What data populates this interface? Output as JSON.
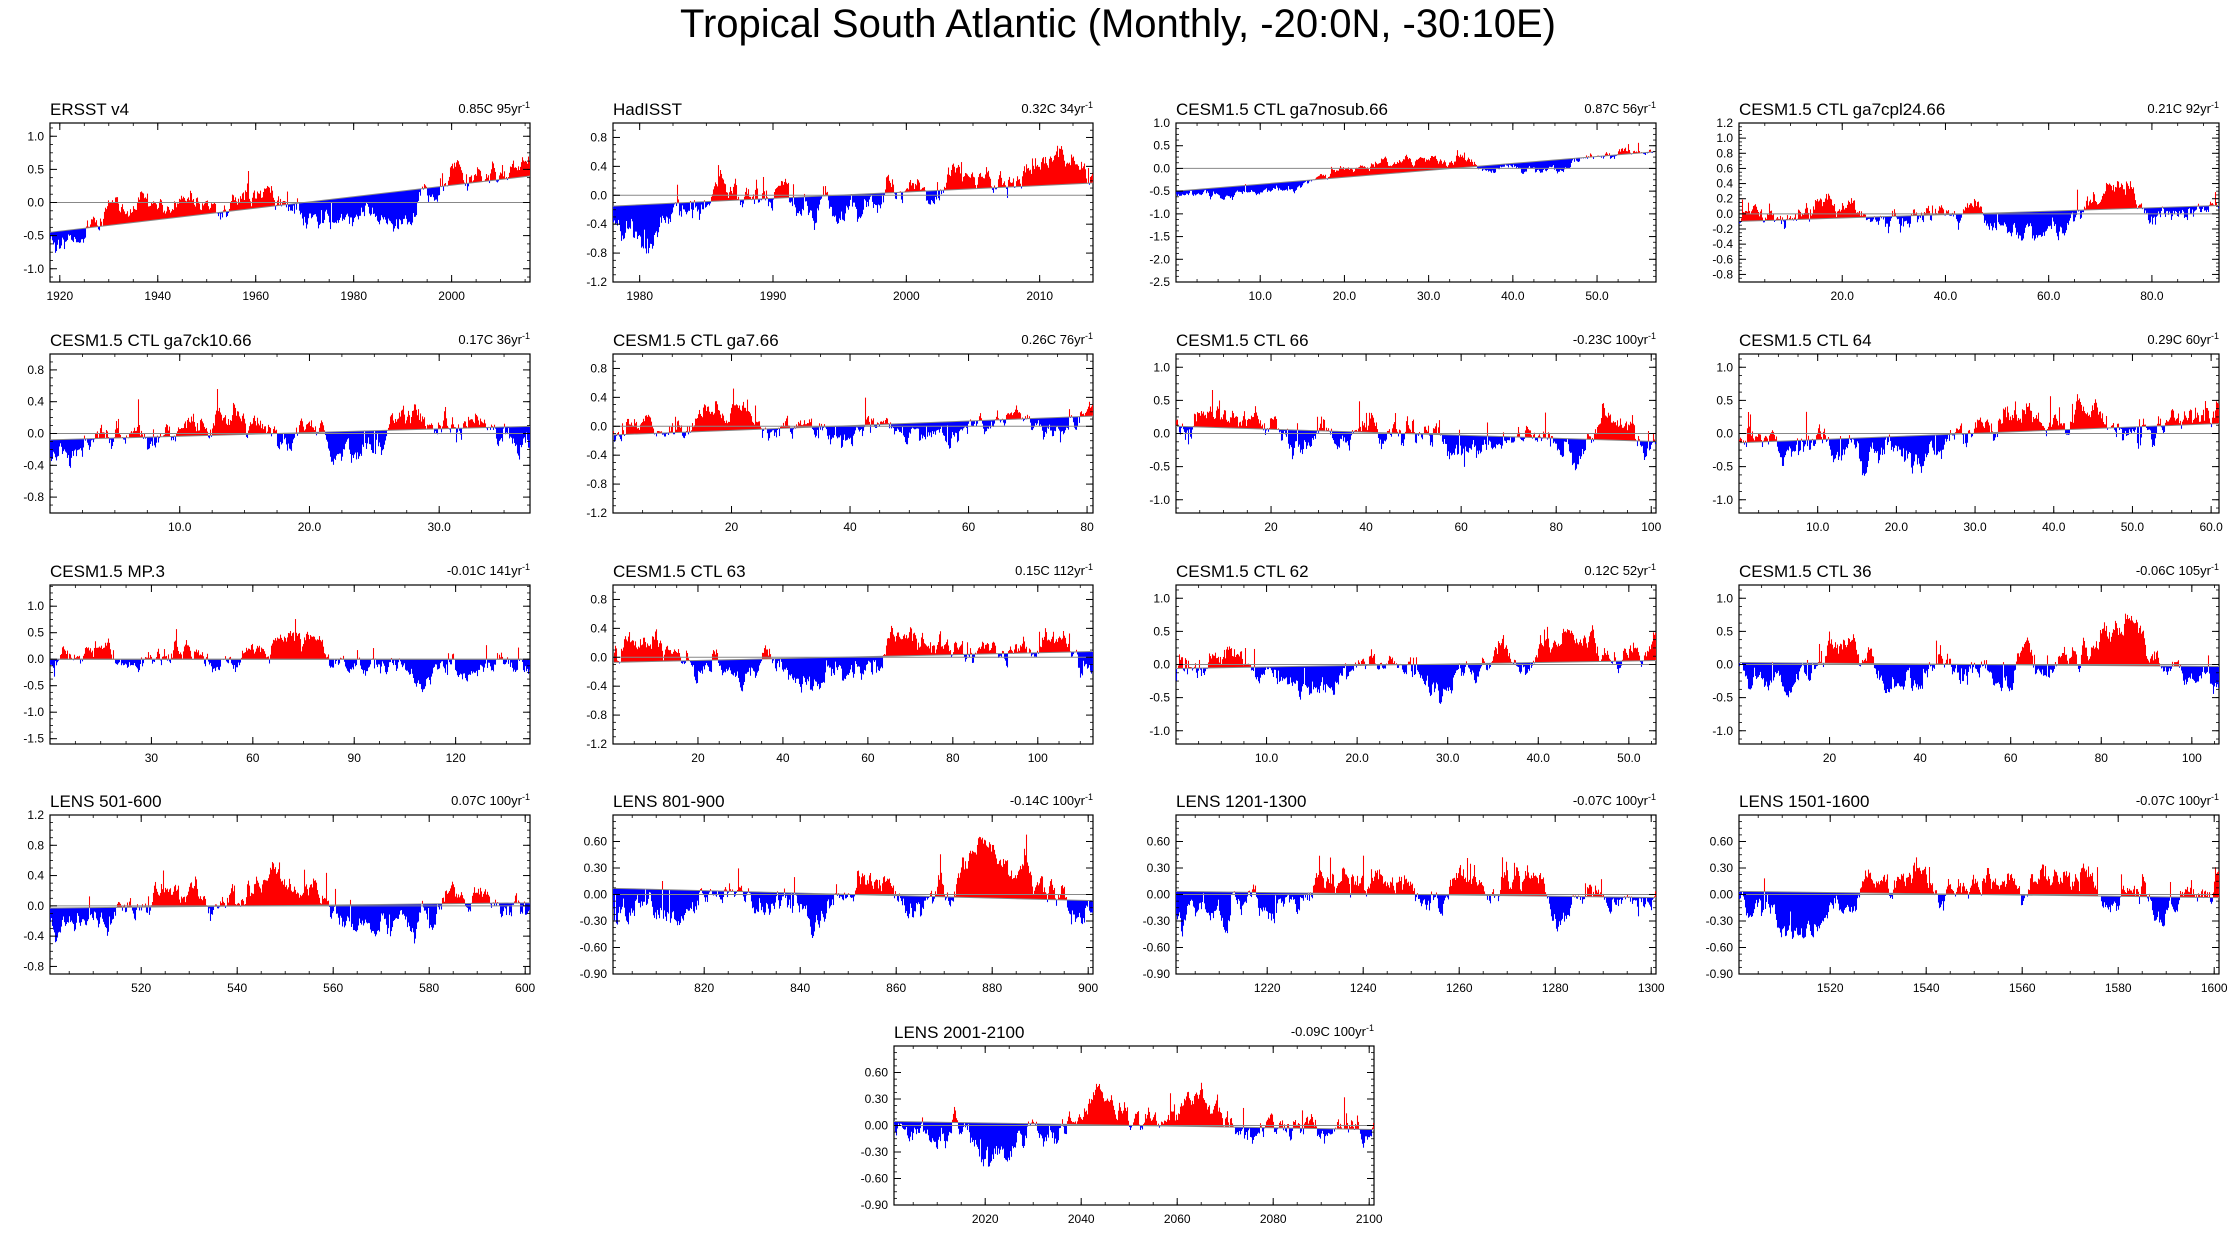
{
  "figure_title": "Tropical South Atlantic (Monthly, -20:0N, -30:10E)",
  "colors": {
    "positive": "#ff0000",
    "negative": "#0000ff",
    "line": "#888888",
    "axis": "#000000"
  },
  "chart_data": [
    {
      "type": "area",
      "title": "ERSST v4",
      "trend": "0.85C 95yr",
      "trend_sup": "-1",
      "x": [
        1918,
        2016
      ],
      "ylim": [
        -1.2,
        1.2
      ],
      "xticks": [
        1920,
        1940,
        1960,
        1980,
        2000
      ],
      "xtick_labels": [
        "1920",
        "1940",
        "1960",
        "1980",
        "2000"
      ],
      "yticks": [
        -1.0,
        -0.5,
        0.0,
        0.5,
        1.0
      ],
      "ytick_labels": [
        "-1.0",
        "-0.5",
        "0.0",
        "0.5",
        "1.0"
      ],
      "trend_line": [
        -0.45,
        0.4
      ],
      "noise": 0.3,
      "seed": 11
    },
    {
      "type": "area",
      "title": "HadISST",
      "trend": "0.32C 34yr",
      "trend_sup": "-1",
      "x": [
        1978,
        2014
      ],
      "ylim": [
        -1.2,
        1.0
      ],
      "xticks": [
        1980,
        1990,
        2000,
        2010
      ],
      "xtick_labels": [
        "1980",
        "1990",
        "2000",
        "2010"
      ],
      "yticks": [
        -1.2,
        -0.8,
        -0.4,
        0.0,
        0.4,
        0.8
      ],
      "ytick_labels": [
        "-1.2",
        "-0.8",
        "-0.4",
        "0.0",
        "0.4",
        "0.8"
      ],
      "trend_line": [
        -0.15,
        0.17
      ],
      "noise": 0.32,
      "seed": 23
    },
    {
      "type": "area",
      "title": "CESM1.5 CTL ga7nosub.66",
      "trend": "0.87C 56yr",
      "trend_sup": "-1",
      "x": [
        0,
        57
      ],
      "ylim": [
        -2.5,
        1.0
      ],
      "xticks": [
        10,
        20,
        30,
        40,
        50
      ],
      "xtick_labels": [
        "10.0",
        "20.0",
        "30.0",
        "40.0",
        "50.0"
      ],
      "yticks": [
        -2.5,
        -2.0,
        -1.5,
        -1.0,
        -0.5,
        0.0,
        0.5,
        1.0
      ],
      "ytick_labels": [
        "-2.5",
        "-2.0",
        "-1.5",
        "-1.0",
        "-0.5",
        "0.0",
        "0.5",
        "1.0"
      ],
      "trend_line": [
        -0.5,
        0.37
      ],
      "noise": 0.18,
      "seed": 37
    },
    {
      "type": "area",
      "title": "CESM1.5 CTL ga7cpl24.66",
      "trend": "0.21C 92yr",
      "trend_sup": "-1",
      "x": [
        0,
        93
      ],
      "ylim": [
        -0.9,
        1.2
      ],
      "xticks": [
        20,
        40,
        60,
        80
      ],
      "xtick_labels": [
        "20.0",
        "40.0",
        "60.0",
        "80.0"
      ],
      "yticks": [
        -0.8,
        -0.6,
        -0.4,
        -0.2,
        0.0,
        0.2,
        0.4,
        0.6,
        0.8,
        1.0,
        1.2
      ],
      "ytick_labels": [
        "-0.8",
        "-0.6",
        "-0.4",
        "-0.2",
        "0.0",
        "0.2",
        "0.4",
        "0.6",
        "0.8",
        "1.0",
        "1.2"
      ],
      "trend_line": [
        -0.1,
        0.11
      ],
      "noise": 0.25,
      "seed": 41
    },
    {
      "type": "area",
      "title": "CESM1.5 CTL ga7ck10.66",
      "trend": "0.17C 36yr",
      "trend_sup": "-1",
      "x": [
        0,
        37
      ],
      "ylim": [
        -1.0,
        1.0
      ],
      "xticks": [
        10,
        20,
        30
      ],
      "xtick_labels": [
        "10.0",
        "20.0",
        "30.0"
      ],
      "yticks": [
        -0.8,
        -0.4,
        0.0,
        0.4,
        0.8
      ],
      "ytick_labels": [
        "-0.8",
        "-0.4",
        "0.0",
        "0.4",
        "0.8"
      ],
      "trend_line": [
        -0.08,
        0.09
      ],
      "noise": 0.3,
      "seed": 53
    },
    {
      "type": "area",
      "title": "CESM1.5 CTL ga7.66",
      "trend": "0.26C 76yr",
      "trend_sup": "-1",
      "x": [
        0,
        81
      ],
      "ylim": [
        -1.2,
        1.0
      ],
      "xticks": [
        20,
        40,
        60,
        80
      ],
      "xtick_labels": [
        "20",
        "40",
        "60",
        "80"
      ],
      "yticks": [
        -1.2,
        -0.8,
        -0.4,
        0.0,
        0.4,
        0.8
      ],
      "ytick_labels": [
        "-1.2",
        "-0.8",
        "-0.4",
        "0.0",
        "0.4",
        "0.8"
      ],
      "trend_line": [
        -0.12,
        0.14
      ],
      "noise": 0.25,
      "seed": 67
    },
    {
      "type": "area",
      "title": "CESM1.5 CTL 66",
      "trend": "-0.23C 100yr",
      "trend_sup": "-1",
      "x": [
        0,
        101
      ],
      "ylim": [
        -1.2,
        1.2
      ],
      "xticks": [
        20,
        40,
        60,
        80,
        100
      ],
      "xtick_labels": [
        "20",
        "40",
        "60",
        "80",
        "100"
      ],
      "yticks": [
        -1.0,
        -0.5,
        0.0,
        0.5,
        1.0
      ],
      "ytick_labels": [
        "-1.0",
        "-0.5",
        "0.0",
        "0.5",
        "1.0"
      ],
      "trend_line": [
        0.11,
        -0.12
      ],
      "noise": 0.35,
      "seed": 71
    },
    {
      "type": "area",
      "title": "CESM1.5 CTL 64",
      "trend": "0.29C 60yr",
      "trend_sup": "-1",
      "x": [
        0,
        61
      ],
      "ylim": [
        -1.2,
        1.2
      ],
      "xticks": [
        10,
        20,
        30,
        40,
        50,
        60
      ],
      "xtick_labels": [
        "10.0",
        "20.0",
        "30.0",
        "40.0",
        "50.0",
        "60.0"
      ],
      "yticks": [
        -1.0,
        -0.5,
        0.0,
        0.5,
        1.0
      ],
      "ytick_labels": [
        "-1.0",
        "-0.5",
        "0.0",
        "0.5",
        "1.0"
      ],
      "trend_line": [
        -0.14,
        0.15
      ],
      "noise": 0.35,
      "seed": 83
    },
    {
      "type": "area",
      "title": "CESM1.5 MP.3",
      "trend": "-0.01C 141yr",
      "trend_sup": "-1",
      "x": [
        0,
        142
      ],
      "ylim": [
        -1.6,
        1.4
      ],
      "xticks": [
        30,
        60,
        90,
        120
      ],
      "xtick_labels": [
        "30",
        "60",
        "90",
        "120"
      ],
      "yticks": [
        -1.5,
        -1.0,
        -0.5,
        0.0,
        0.5,
        1.0
      ],
      "ytick_labels": [
        "-1.5",
        "-1.0",
        "-0.5",
        "0.0",
        "0.5",
        "1.0"
      ],
      "trend_line": [
        0.0,
        0.0
      ],
      "noise": 0.35,
      "seed": 97
    },
    {
      "type": "area",
      "title": "CESM1.5 CTL 63",
      "trend": "0.15C 112yr",
      "trend_sup": "-1",
      "x": [
        0,
        113
      ],
      "ylim": [
        -1.2,
        1.0
      ],
      "xticks": [
        20,
        40,
        60,
        80,
        100
      ],
      "xtick_labels": [
        "20",
        "40",
        "60",
        "80",
        "100"
      ],
      "yticks": [
        -1.2,
        -0.8,
        -0.4,
        0.0,
        0.4,
        0.8
      ],
      "ytick_labels": [
        "-1.2",
        "-0.8",
        "-0.4",
        "0.0",
        "0.4",
        "0.8"
      ],
      "trend_line": [
        -0.07,
        0.08
      ],
      "noise": 0.3,
      "seed": 101
    },
    {
      "type": "area",
      "title": "CESM1.5 CTL 62",
      "trend": "0.12C 52yr",
      "trend_sup": "-1",
      "x": [
        0,
        53
      ],
      "ylim": [
        -1.2,
        1.2
      ],
      "xticks": [
        10,
        20,
        30,
        40,
        50
      ],
      "xtick_labels": [
        "10.0",
        "20.0",
        "30.0",
        "40.0",
        "50.0"
      ],
      "yticks": [
        -1.0,
        -0.5,
        0.0,
        0.5,
        1.0
      ],
      "ytick_labels": [
        "-1.0",
        "-0.5",
        "0.0",
        "0.5",
        "1.0"
      ],
      "trend_line": [
        -0.06,
        0.06
      ],
      "noise": 0.35,
      "seed": 113
    },
    {
      "type": "area",
      "title": "CESM1.5 CTL 36",
      "trend": "-0.06C 105yr",
      "trend_sup": "-1",
      "x": [
        0,
        106
      ],
      "ylim": [
        -1.2,
        1.2
      ],
      "xticks": [
        20,
        40,
        60,
        80,
        100
      ],
      "xtick_labels": [
        "20",
        "40",
        "60",
        "80",
        "100"
      ],
      "yticks": [
        -1.0,
        -0.5,
        0.0,
        0.5,
        1.0
      ],
      "ytick_labels": [
        "-1.0",
        "-0.5",
        "0.0",
        "0.5",
        "1.0"
      ],
      "trend_line": [
        0.03,
        -0.03
      ],
      "noise": 0.35,
      "seed": 127
    },
    {
      "type": "area",
      "title": "LENS 501-600",
      "trend": "0.07C 100yr",
      "trend_sup": "-1",
      "x": [
        501,
        601
      ],
      "ylim": [
        -0.9,
        1.2
      ],
      "xticks": [
        520,
        540,
        560,
        580,
        600
      ],
      "xtick_labels": [
        "520",
        "540",
        "560",
        "580",
        "600"
      ],
      "yticks": [
        -0.8,
        -0.4,
        0.0,
        0.4,
        0.8,
        1.2
      ],
      "ytick_labels": [
        "-0.8",
        "-0.4",
        "0.0",
        "0.4",
        "0.8",
        "1.2"
      ],
      "trend_line": [
        -0.03,
        0.04
      ],
      "noise": 0.28,
      "seed": 131
    },
    {
      "type": "area",
      "title": "LENS 801-900",
      "trend": "-0.14C 100yr",
      "trend_sup": "-1",
      "x": [
        801,
        901
      ],
      "ylim": [
        -0.9,
        0.9
      ],
      "xticks": [
        820,
        840,
        860,
        880,
        900
      ],
      "xtick_labels": [
        "820",
        "840",
        "860",
        "880",
        "900"
      ],
      "yticks": [
        -0.9,
        -0.6,
        -0.3,
        0.0,
        0.3,
        0.6
      ],
      "ytick_labels": [
        "-0.90",
        "-0.60",
        "-0.30",
        "0.00",
        "0.30",
        "0.60"
      ],
      "trend_line": [
        0.07,
        -0.07
      ],
      "noise": 0.28,
      "seed": 149
    },
    {
      "type": "area",
      "title": "LENS 1201-1300",
      "trend": "-0.07C 100yr",
      "trend_sup": "-1",
      "x": [
        1201,
        1301
      ],
      "ylim": [
        -0.9,
        0.9
      ],
      "xticks": [
        1220,
        1240,
        1260,
        1280,
        1300
      ],
      "xtick_labels": [
        "1220",
        "1240",
        "1260",
        "1280",
        "1300"
      ],
      "yticks": [
        -0.9,
        -0.6,
        -0.3,
        0.0,
        0.3,
        0.6
      ],
      "ytick_labels": [
        "-0.90",
        "-0.60",
        "-0.30",
        "0.00",
        "0.30",
        "0.60"
      ],
      "trend_line": [
        0.035,
        -0.035
      ],
      "noise": 0.28,
      "seed": 157
    },
    {
      "type": "area",
      "title": "LENS 1501-1600",
      "trend": "-0.07C 100yr",
      "trend_sup": "-1",
      "x": [
        1501,
        1601
      ],
      "ylim": [
        -0.9,
        0.9
      ],
      "xticks": [
        1520,
        1540,
        1560,
        1580,
        1600
      ],
      "xtick_labels": [
        "1520",
        "1540",
        "1560",
        "1580",
        "1600"
      ],
      "yticks": [
        -0.9,
        -0.6,
        -0.3,
        0.0,
        0.3,
        0.6
      ],
      "ytick_labels": [
        "-0.90",
        "-0.60",
        "-0.30",
        "0.00",
        "0.30",
        "0.60"
      ],
      "trend_line": [
        0.035,
        -0.035
      ],
      "noise": 0.28,
      "seed": 163
    },
    {
      "type": "area",
      "title": "LENS 2001-2100",
      "trend": "-0.09C 100yr",
      "trend_sup": "-1",
      "x": [
        2001,
        2101
      ],
      "ylim": [
        -0.9,
        0.9
      ],
      "xticks": [
        2020,
        2040,
        2060,
        2080,
        2100
      ],
      "xtick_labels": [
        "2020",
        "2040",
        "2060",
        "2080",
        "2100"
      ],
      "yticks": [
        -0.9,
        -0.6,
        -0.3,
        0.0,
        0.3,
        0.6
      ],
      "ytick_labels": [
        "-0.90",
        "-0.60",
        "-0.30",
        "0.00",
        "0.30",
        "0.60"
      ],
      "trend_line": [
        0.045,
        -0.045
      ],
      "noise": 0.28,
      "seed": 179
    }
  ]
}
